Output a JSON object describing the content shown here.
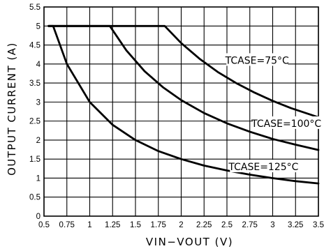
{
  "chart_data": {
    "type": "line",
    "title": "",
    "xlabel": "VIN−VOUT (V)",
    "ylabel": "OUTPUT CURRENT (A)",
    "xlim": [
      0.5,
      3.5
    ],
    "ylim": [
      0,
      5.5
    ],
    "grid": true,
    "x_ticks": [
      0.5,
      0.75,
      1,
      1.25,
      1.5,
      1.75,
      2,
      2.25,
      2.5,
      2.75,
      3,
      3.25,
      3.5
    ],
    "x_tick_labels": [
      "0.5",
      "0.75",
      "1",
      "1.25",
      "1.5",
      "1.75",
      "2",
      "2.25",
      "2.5",
      "2.75",
      "3",
      "3.25",
      "3.5"
    ],
    "y_ticks": [
      0,
      0.5,
      1,
      1.5,
      2,
      2.5,
      3,
      3.5,
      4,
      4.5,
      5,
      5.5
    ],
    "y_tick_labels": [
      "0",
      "0.5",
      "1",
      "1.5",
      "2",
      "2.5",
      "3",
      "3.5",
      "4",
      "4.5",
      "5",
      "5.5"
    ],
    "series": [
      {
        "name": "TCASE=75°C",
        "x": [
          0.55,
          1.82,
          2.0,
          2.2,
          2.4,
          2.6,
          2.8,
          3.0,
          3.2,
          3.4,
          3.5
        ],
        "y": [
          5.0,
          5.0,
          4.55,
          4.14,
          3.79,
          3.5,
          3.25,
          3.03,
          2.84,
          2.68,
          2.6
        ]
      },
      {
        "name": "TCASE=100°C",
        "x": [
          0.55,
          1.22,
          1.4,
          1.6,
          1.8,
          2.0,
          2.25,
          2.5,
          2.75,
          3.0,
          3.25,
          3.5
        ],
        "y": [
          5.0,
          5.0,
          4.36,
          3.81,
          3.39,
          3.05,
          2.71,
          2.44,
          2.22,
          2.03,
          1.88,
          1.74
        ]
      },
      {
        "name": "TCASE=125°C",
        "x": [
          0.55,
          0.6,
          0.75,
          1.0,
          1.25,
          1.5,
          1.75,
          2.0,
          2.25,
          2.5,
          2.75,
          3.0,
          3.25,
          3.5
        ],
        "y": [
          5.0,
          5.0,
          4.0,
          3.0,
          2.4,
          2.0,
          1.71,
          1.5,
          1.33,
          1.2,
          1.09,
          1.0,
          0.92,
          0.86
        ]
      }
    ],
    "annotations": [
      {
        "text": "TCASE=75°C",
        "x": 2.83,
        "y": 4.1
      },
      {
        "text": "TCASE=100°C",
        "x": 3.15,
        "y": 2.44
      },
      {
        "text": "TCASE=125°C",
        "x": 2.9,
        "y": 1.3
      }
    ]
  }
}
